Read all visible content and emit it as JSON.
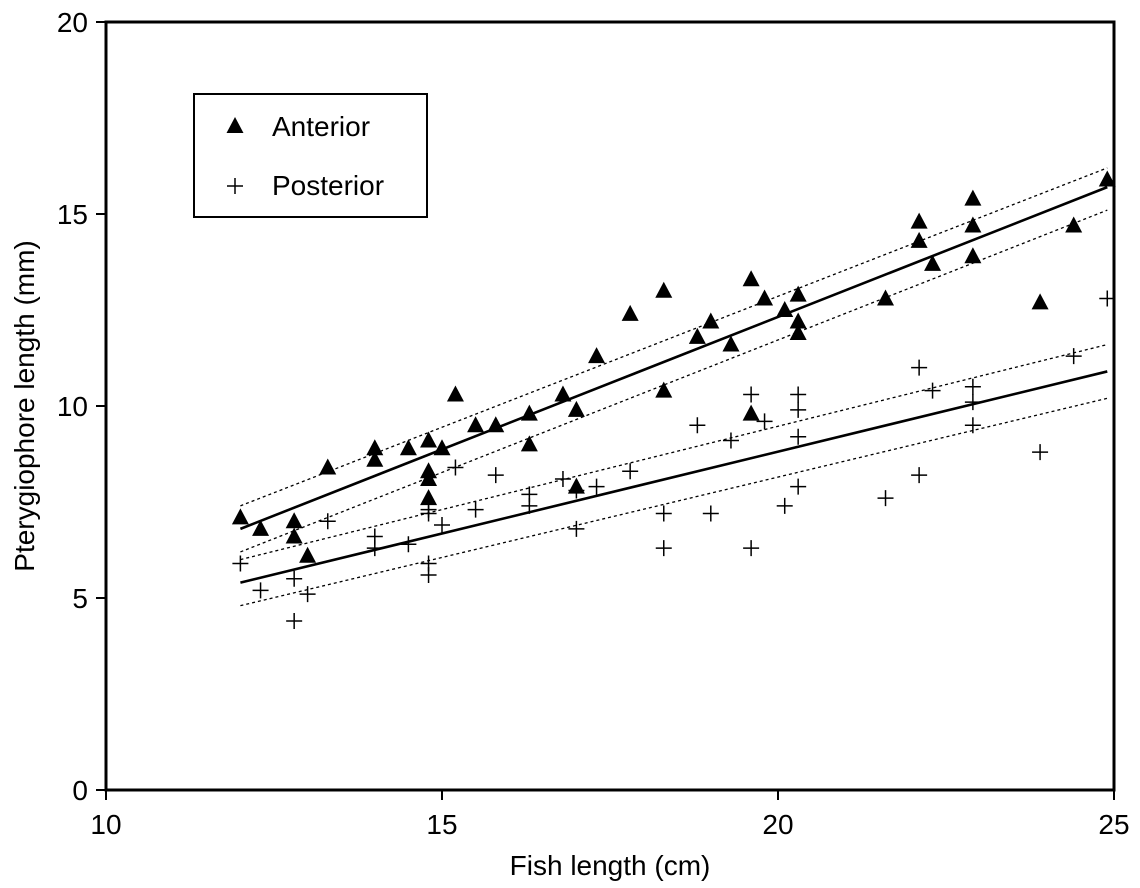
{
  "chart_data": {
    "type": "scatter",
    "title": "",
    "xlabel": "Fish length (cm)",
    "ylabel": "Pterygiophore length (mm)",
    "xlim": [
      10,
      25
    ],
    "ylim": [
      0,
      20
    ],
    "x_ticks": [
      10,
      15,
      20,
      25
    ],
    "y_ticks": [
      0,
      5,
      10,
      15,
      20
    ],
    "grid": false,
    "legend_position": "top-left",
    "series": [
      {
        "name": "Anterior",
        "marker": "triangle",
        "color": "#000000",
        "points": [
          [
            12.0,
            7.1
          ],
          [
            12.3,
            6.8
          ],
          [
            12.8,
            7.0
          ],
          [
            12.8,
            6.6
          ],
          [
            13.0,
            6.1
          ],
          [
            13.3,
            8.4
          ],
          [
            14.0,
            8.6
          ],
          [
            14.0,
            8.9
          ],
          [
            14.5,
            8.9
          ],
          [
            14.8,
            9.1
          ],
          [
            14.8,
            8.3
          ],
          [
            14.8,
            8.1
          ],
          [
            14.8,
            7.6
          ],
          [
            15.0,
            8.9
          ],
          [
            15.2,
            10.3
          ],
          [
            15.5,
            9.5
          ],
          [
            15.8,
            9.5
          ],
          [
            16.3,
            9.8
          ],
          [
            16.3,
            9.0
          ],
          [
            16.8,
            10.3
          ],
          [
            17.0,
            9.9
          ],
          [
            17.0,
            7.9
          ],
          [
            17.3,
            11.3
          ],
          [
            17.8,
            12.4
          ],
          [
            18.3,
            13.0
          ],
          [
            18.3,
            10.4
          ],
          [
            18.8,
            11.8
          ],
          [
            19.0,
            12.2
          ],
          [
            19.3,
            11.6
          ],
          [
            19.6,
            13.3
          ],
          [
            19.6,
            9.8
          ],
          [
            19.8,
            12.8
          ],
          [
            20.1,
            12.5
          ],
          [
            20.3,
            12.9
          ],
          [
            20.3,
            12.2
          ],
          [
            20.3,
            11.9
          ],
          [
            21.6,
            12.8
          ],
          [
            22.1,
            14.8
          ],
          [
            22.1,
            14.3
          ],
          [
            22.3,
            13.7
          ],
          [
            22.9,
            15.4
          ],
          [
            22.9,
            14.7
          ],
          [
            22.9,
            13.9
          ],
          [
            23.9,
            12.7
          ],
          [
            24.4,
            14.7
          ],
          [
            24.9,
            15.9
          ]
        ]
      },
      {
        "name": "Posterior",
        "marker": "plus",
        "color": "#000000",
        "points": [
          [
            12.0,
            5.9
          ],
          [
            12.3,
            5.2
          ],
          [
            12.8,
            5.5
          ],
          [
            12.8,
            4.4
          ],
          [
            13.0,
            5.1
          ],
          [
            13.3,
            7.0
          ],
          [
            14.0,
            6.6
          ],
          [
            14.0,
            6.3
          ],
          [
            14.5,
            6.4
          ],
          [
            14.8,
            7.3
          ],
          [
            14.8,
            7.2
          ],
          [
            14.8,
            5.9
          ],
          [
            14.8,
            5.6
          ],
          [
            15.0,
            6.9
          ],
          [
            15.2,
            8.4
          ],
          [
            15.5,
            7.3
          ],
          [
            15.8,
            8.2
          ],
          [
            16.3,
            7.7
          ],
          [
            16.3,
            7.4
          ],
          [
            16.8,
            8.1
          ],
          [
            17.0,
            6.8
          ],
          [
            17.0,
            7.8
          ],
          [
            17.3,
            7.9
          ],
          [
            17.8,
            8.3
          ],
          [
            18.3,
            7.2
          ],
          [
            18.3,
            6.3
          ],
          [
            18.8,
            9.5
          ],
          [
            19.0,
            7.2
          ],
          [
            19.3,
            9.1
          ],
          [
            19.6,
            10.3
          ],
          [
            19.6,
            6.3
          ],
          [
            19.8,
            9.6
          ],
          [
            20.1,
            7.4
          ],
          [
            20.3,
            10.3
          ],
          [
            20.3,
            9.9
          ],
          [
            20.3,
            9.2
          ],
          [
            20.3,
            7.9
          ],
          [
            21.6,
            7.6
          ],
          [
            22.1,
            11.0
          ],
          [
            22.1,
            8.2
          ],
          [
            22.3,
            10.4
          ],
          [
            22.9,
            10.5
          ],
          [
            22.9,
            10.1
          ],
          [
            22.9,
            9.5
          ],
          [
            23.9,
            8.8
          ],
          [
            24.4,
            11.3
          ],
          [
            24.9,
            12.8
          ]
        ]
      }
    ],
    "regression_lines": [
      {
        "series": "Anterior",
        "style": "solid",
        "x": [
          12.0,
          24.9
        ],
        "y": [
          6.8,
          15.7
        ]
      },
      {
        "series": "Anterior",
        "style": "dotted",
        "x": [
          12.0,
          24.9
        ],
        "y": [
          7.4,
          16.2
        ]
      },
      {
        "series": "Anterior",
        "style": "dotted",
        "x": [
          12.0,
          24.9
        ],
        "y": [
          6.2,
          15.1
        ]
      },
      {
        "series": "Posterior",
        "style": "solid",
        "x": [
          12.0,
          24.9
        ],
        "y": [
          5.4,
          10.9
        ]
      },
      {
        "series": "Posterior",
        "style": "dotted",
        "x": [
          12.0,
          24.9
        ],
        "y": [
          6.0,
          11.6
        ]
      },
      {
        "series": "Posterior",
        "style": "dotted",
        "x": [
          12.0,
          24.9
        ],
        "y": [
          4.8,
          10.2
        ]
      }
    ]
  }
}
